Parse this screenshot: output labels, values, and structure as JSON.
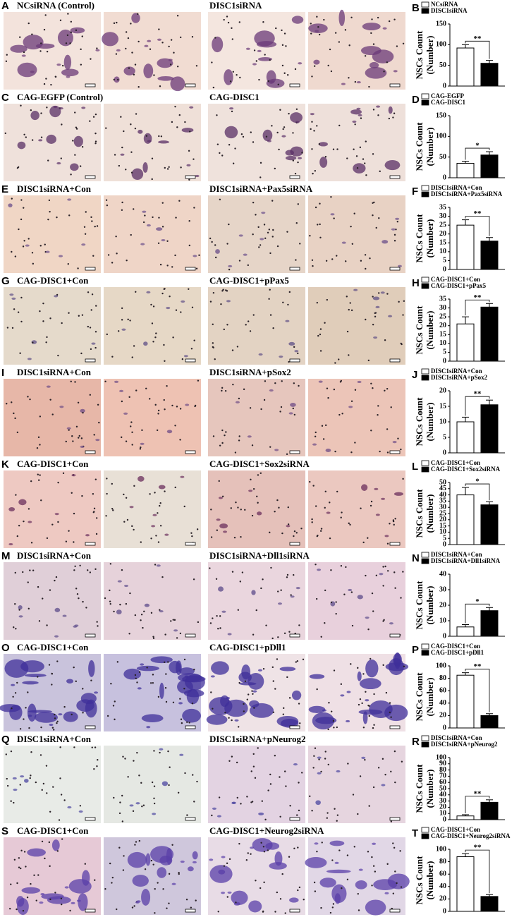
{
  "rows": [
    {
      "label": "A",
      "left_title": "NCsiRNA (Control)",
      "right_title": "DISC1siRNA"
    },
    {
      "label": "C",
      "left_title": "CAG-EGFP (Control)",
      "right_title": "CAG-DISC1"
    },
    {
      "label": "E",
      "left_title": "DISC1siRNA+Con",
      "right_title": "DISC1siRNA+Pax5siRNA"
    },
    {
      "label": "G",
      "left_title": "CAG-DISC1+Con",
      "right_title": "CAG-DISC1+pPax5"
    },
    {
      "label": "I",
      "left_title": "DISC1siRNA+Con",
      "right_title": "DISC1siRNA+pSox2"
    },
    {
      "label": "K",
      "left_title": "CAG-DISC1+Con",
      "right_title": "CAG-DISC1+Sox2siRNA"
    },
    {
      "label": "M",
      "left_title": "DISC1siRNA+Con",
      "right_title": "DISC1siRNA+Dll1siRNA"
    },
    {
      "label": "O",
      "left_title": "CAG-DISC1+Con",
      "right_title": "CAG-DISC1+pDll1"
    },
    {
      "label": "Q",
      "left_title": "DISC1siRNA+Con",
      "right_title": "DISC1siRNA+pNeurog2"
    },
    {
      "label": "S",
      "left_title": "CAG-DISC1+Con",
      "right_title": "CAG-DISC1+Neurog2siRNA"
    }
  ],
  "chart_data": [
    {
      "type": "bar",
      "label": "B",
      "ylabel": [
        "NSCs Count",
        "(Number)"
      ],
      "ylim": [
        0,
        150
      ],
      "yticks": [
        0,
        50,
        100,
        150
      ],
      "annotation": "**",
      "series": [
        {
          "name": "NCsiRNA",
          "color": "#ffffff",
          "values": [
            92
          ],
          "errors": [
            8
          ]
        },
        {
          "name": "DISC1siRNA",
          "color": "#000000",
          "values": [
            55
          ],
          "errors": [
            7
          ]
        }
      ]
    },
    {
      "type": "bar",
      "label": "D",
      "ylabel": [
        "NSCs Count",
        "(Number)"
      ],
      "ylim": [
        0,
        150
      ],
      "yticks": [
        0,
        50,
        100,
        150
      ],
      "annotation": "*",
      "series": [
        {
          "name": "CAG-EGFP",
          "color": "#ffffff",
          "values": [
            35
          ],
          "errors": [
            5
          ]
        },
        {
          "name": "CAG-DISC1",
          "color": "#000000",
          "values": [
            55
          ],
          "errors": [
            8
          ]
        }
      ]
    },
    {
      "type": "bar",
      "label": "F",
      "ylabel": [
        "NSCs Count",
        "(Number)"
      ],
      "ylim": [
        0,
        35
      ],
      "yticks": [
        0,
        5,
        10,
        15,
        20,
        25,
        30,
        35
      ],
      "annotation": "**",
      "series": [
        {
          "name": "DISC1siRNA+Con",
          "color": "#ffffff",
          "values": [
            25
          ],
          "errors": [
            3
          ]
        },
        {
          "name": "DISC1siRNA+Pax5siRNA",
          "color": "#000000",
          "values": [
            16
          ],
          "errors": [
            2
          ]
        }
      ]
    },
    {
      "type": "bar",
      "label": "H",
      "ylabel": [
        "NSCs Count",
        "(Number)"
      ],
      "ylim": [
        0,
        35
      ],
      "yticks": [
        0,
        5,
        10,
        15,
        20,
        25,
        30,
        35
      ],
      "annotation": "**",
      "series": [
        {
          "name": "CAG-DISC1+Con",
          "color": "#ffffff",
          "values": [
            21
          ],
          "errors": [
            4
          ]
        },
        {
          "name": "CAG-DISC1+pPax5",
          "color": "#000000",
          "values": [
            30.5
          ],
          "errors": [
            2
          ]
        }
      ]
    },
    {
      "type": "bar",
      "label": "J",
      "ylabel": [
        "NSCs Count",
        "(Number)"
      ],
      "ylim": [
        0,
        20
      ],
      "yticks": [
        0,
        5,
        10,
        15,
        20
      ],
      "annotation": "**",
      "series": [
        {
          "name": "DISC1siRNA+Con",
          "color": "#ffffff",
          "values": [
            10
          ],
          "errors": [
            1.5
          ]
        },
        {
          "name": "DISC1siRNA+pSox2",
          "color": "#000000",
          "values": [
            15.5
          ],
          "errors": [
            1.5
          ]
        }
      ]
    },
    {
      "type": "bar",
      "label": "L",
      "ylabel": [
        "NSCs Count",
        "(Number)"
      ],
      "ylim": [
        0,
        50
      ],
      "yticks": [
        0,
        5,
        10,
        15,
        20,
        25,
        30,
        35,
        40,
        45,
        50
      ],
      "annotation": "*",
      "series": [
        {
          "name": "CAG-DISC1+Con",
          "color": "#ffffff",
          "values": [
            40
          ],
          "errors": [
            6
          ]
        },
        {
          "name": "CAG-DISC1+Sox2siRNA",
          "color": "#000000",
          "values": [
            32
          ],
          "errors": [
            2.5
          ]
        }
      ]
    },
    {
      "type": "bar",
      "label": "N",
      "ylabel": [
        "NSCs Count",
        "(Number)"
      ],
      "ylim": [
        0,
        40
      ],
      "yticks": [
        0,
        10,
        20,
        30,
        40
      ],
      "annotation": "*",
      "series": [
        {
          "name": "DISC1siRNA+Con",
          "color": "#ffffff",
          "values": [
            6
          ],
          "errors": [
            1.5
          ]
        },
        {
          "name": "DISC1siRNA+Dll1siRNA",
          "color": "#000000",
          "values": [
            16.5
          ],
          "errors": [
            2
          ]
        }
      ]
    },
    {
      "type": "bar",
      "label": "P",
      "ylabel": [
        "NSCs Count",
        "(Number)"
      ],
      "ylim": [
        0,
        100
      ],
      "yticks": [
        0,
        20,
        40,
        60,
        80,
        100
      ],
      "annotation": "**",
      "series": [
        {
          "name": "CAG-DISC1+Con",
          "color": "#ffffff",
          "values": [
            85
          ],
          "errors": [
            4
          ]
        },
        {
          "name": "CAG-DISC1+pDll1",
          "color": "#000000",
          "values": [
            20
          ],
          "errors": [
            3
          ]
        }
      ]
    },
    {
      "type": "bar",
      "label": "R",
      "ylabel": [
        "NSCs Count",
        "(Number)"
      ],
      "ylim": [
        0,
        100
      ],
      "yticks": [
        0,
        10,
        20,
        30,
        40,
        50,
        60,
        70,
        80,
        90,
        100
      ],
      "annotation": "**",
      "series": [
        {
          "name": "DISC1siRNA+Con",
          "color": "#ffffff",
          "values": [
            6
          ],
          "errors": [
            2
          ]
        },
        {
          "name": "DISC1siRNA+pNeurog2",
          "color": "#000000",
          "values": [
            28
          ],
          "errors": [
            4
          ]
        }
      ]
    },
    {
      "type": "bar",
      "label": "T",
      "ylabel": [
        "NSCs Count",
        "(Number)"
      ],
      "ylim": [
        0,
        100
      ],
      "yticks": [
        0,
        20,
        40,
        60,
        80,
        100
      ],
      "annotation": "**",
      "series": [
        {
          "name": "CAG-DISC1+Con",
          "color": "#ffffff",
          "values": [
            88
          ],
          "errors": [
            5
          ]
        },
        {
          "name": "CAG-DISC1+Neurog2siRNA",
          "color": "#000000",
          "values": [
            24
          ],
          "errors": [
            3
          ]
        }
      ]
    }
  ]
}
